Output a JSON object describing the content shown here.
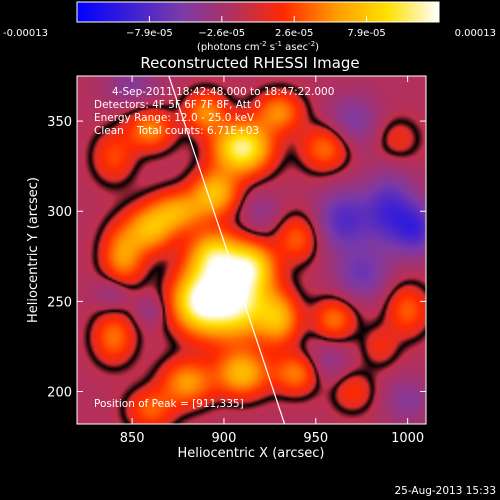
{
  "chart_data": {
    "type": "heatmap",
    "title": "Reconstructed RHESSI Image",
    "xlabel": "Heliocentric X (arcsec)",
    "ylabel": "Heliocentric Y (arcsec)",
    "xlim": [
      820,
      1010
    ],
    "ylim": [
      182,
      375
    ],
    "x_ticks": [
      "850",
      "900",
      "950",
      "1000"
    ],
    "x_tick_values": [
      850,
      900,
      950,
      1000
    ],
    "y_ticks": [
      "200",
      "250",
      "300",
      "350"
    ],
    "y_tick_values": [
      200,
      250,
      300,
      350
    ],
    "colorbar": {
      "units_label": "(photons cm",
      "units_exp1": "-2",
      "units_mid": " s",
      "units_exp2": "-1",
      "units_mid2": " asec",
      "units_exp3": "-2",
      "units_end": ")",
      "tick_labels": [
        "-0.00013",
        "−7.9e-05",
        "−2.6e-05",
        "2.6e-05",
        "7.9e-05",
        "0.00013"
      ],
      "range": [
        -0.00013,
        0.00013
      ],
      "colors": [
        "#0000ff",
        "#3a1fd6",
        "#7a3aa8",
        "#b03060",
        "#ff2a00",
        "#ff9a00",
        "#ffe000",
        "#ffffff"
      ]
    },
    "info": {
      "time_range": "4-Sep-2011 18:42:48.000 to 18:47:22.000",
      "detectors": "Detectors: 4F 5F 6F 7F 8F, Att 0",
      "energy": "Energy Range: 12.0 - 25.0 keV",
      "clean": "Clean    Total counts: 6.71E+03",
      "peak": "Position of Peak = [911,335]"
    },
    "peak": [
      911,
      335
    ],
    "limb_line": [
      [
        870,
        375
      ],
      [
        933,
        182
      ]
    ],
    "blobs": [
      [
        905,
        250,
        2.0,
        14,
        14
      ],
      [
        910,
        335,
        1.8,
        11,
        10
      ],
      [
        885,
        250,
        1.4,
        10,
        12
      ],
      [
        895,
        275,
        1.4,
        10,
        10
      ],
      [
        915,
        270,
        1.2,
        9,
        9
      ],
      [
        895,
        310,
        1.2,
        9,
        9
      ],
      [
        875,
        300,
        1.0,
        10,
        8
      ],
      [
        860,
        290,
        1.1,
        9,
        9
      ],
      [
        845,
        275,
        1.0,
        8,
        12
      ],
      [
        840,
        230,
        0.8,
        8,
        10
      ],
      [
        840,
        330,
        0.6,
        8,
        10
      ],
      [
        860,
        345,
        0.9,
        9,
        8
      ],
      [
        890,
        355,
        0.9,
        8,
        8
      ],
      [
        930,
        355,
        0.9,
        9,
        8
      ],
      [
        955,
        335,
        0.8,
        9,
        9
      ],
      [
        930,
        240,
        1.0,
        8,
        10
      ],
      [
        940,
        285,
        0.7,
        8,
        9
      ],
      [
        880,
        205,
        1.0,
        10,
        9
      ],
      [
        910,
        210,
        1.2,
        10,
        9
      ],
      [
        940,
        210,
        0.9,
        9,
        8
      ],
      [
        960,
        240,
        0.8,
        8,
        8
      ],
      [
        970,
        200,
        0.5,
        8,
        8
      ],
      [
        1000,
        245,
        0.7,
        8,
        10
      ],
      [
        995,
        340,
        0.4,
        8,
        8
      ],
      [
        860,
        190,
        0.7,
        9,
        8
      ],
      [
        985,
        225,
        0.4,
        7,
        8
      ],
      [
        965,
        295,
        -0.8,
        10,
        12
      ],
      [
        990,
        300,
        -0.9,
        10,
        14
      ],
      [
        1005,
        290,
        -0.8,
        8,
        10
      ],
      [
        975,
        265,
        -0.6,
        10,
        10
      ],
      [
        970,
        350,
        -0.5,
        10,
        10
      ],
      [
        850,
        370,
        -0.4,
        10,
        8
      ],
      [
        840,
        255,
        -0.4,
        7,
        7
      ],
      [
        955,
        215,
        -0.4,
        9,
        9
      ],
      [
        1000,
        195,
        -0.4,
        9,
        9
      ],
      [
        920,
        300,
        -0.3,
        8,
        8
      ],
      [
        860,
        245,
        -0.3,
        6,
        6
      ]
    ]
  },
  "footer": {
    "date": "25-Aug-2013 15:33"
  },
  "colors": {
    "background": "#000000",
    "text": "#ffffff"
  }
}
